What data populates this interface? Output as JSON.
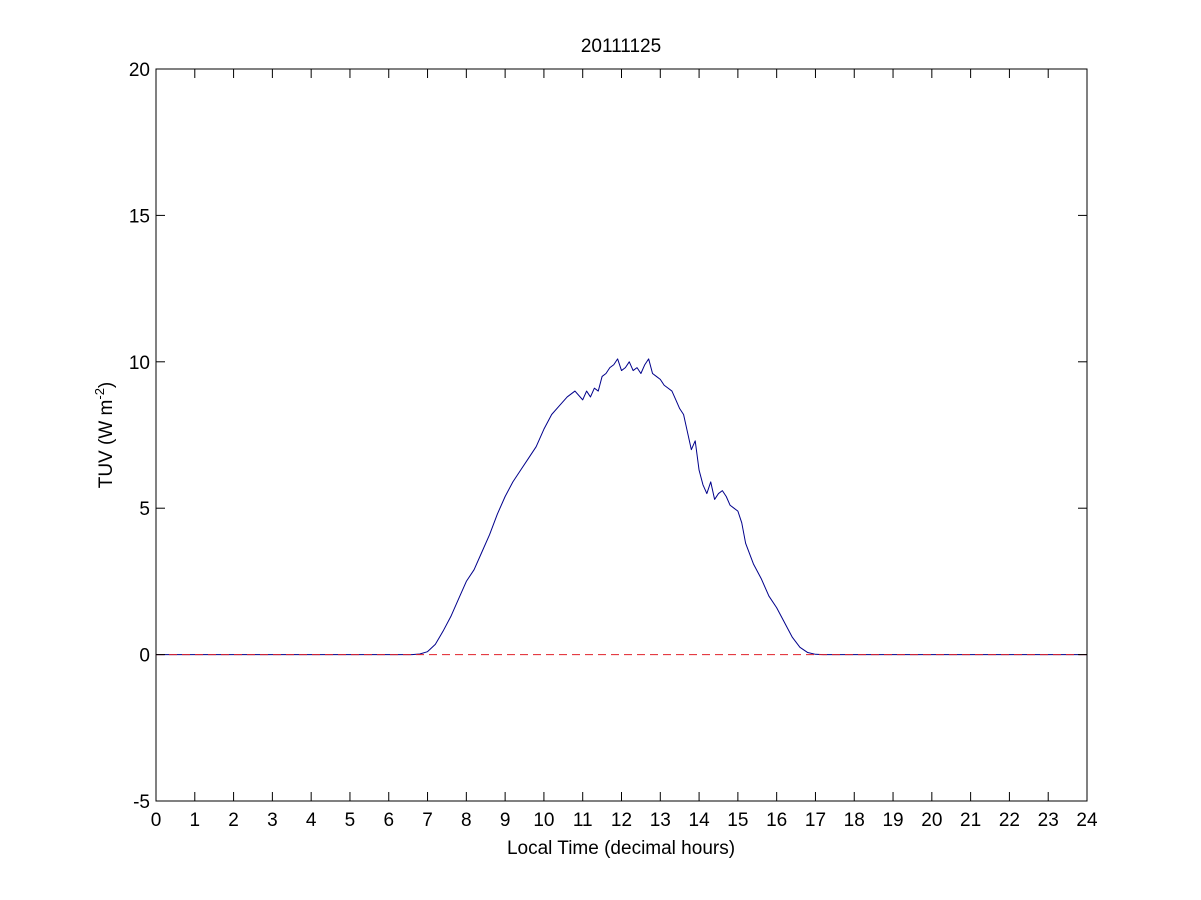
{
  "chart_data": {
    "type": "line",
    "title": "20111125",
    "xlabel": "Local Time (decimal hours)",
    "ylabel": {
      "text": "TUV (W m",
      "superscript": "-2",
      "suffix": ")"
    },
    "xlim": [
      0,
      24
    ],
    "ylim": [
      -5,
      20
    ],
    "xticks": [
      0,
      1,
      2,
      3,
      4,
      5,
      6,
      7,
      8,
      9,
      10,
      11,
      12,
      13,
      14,
      15,
      16,
      17,
      18,
      19,
      20,
      21,
      22,
      23,
      24
    ],
    "yticks": [
      -5,
      0,
      5,
      10,
      15,
      20
    ],
    "grid": false,
    "legend": "none",
    "series": [
      {
        "color": "#00008b",
        "style": "solid",
        "x": [
          0,
          6.6,
          6.8,
          7.0,
          7.2,
          7.4,
          7.6,
          7.8,
          8.0,
          8.2,
          8.4,
          8.6,
          8.8,
          9.0,
          9.2,
          9.4,
          9.6,
          9.8,
          10.0,
          10.2,
          10.4,
          10.6,
          10.8,
          11.0,
          11.1,
          11.2,
          11.3,
          11.4,
          11.5,
          11.6,
          11.7,
          11.8,
          11.9,
          12.0,
          12.1,
          12.2,
          12.3,
          12.4,
          12.5,
          12.6,
          12.7,
          12.8,
          12.9,
          13.0,
          13.1,
          13.2,
          13.3,
          13.4,
          13.5,
          13.6,
          13.7,
          13.8,
          13.9,
          14.0,
          14.1,
          14.2,
          14.3,
          14.4,
          14.5,
          14.6,
          14.7,
          14.8,
          14.9,
          15.0,
          15.1,
          15.2,
          15.4,
          15.6,
          15.8,
          16.0,
          16.2,
          16.4,
          16.6,
          16.8,
          17.0,
          17.2,
          17.4,
          24
        ],
        "values": [
          0,
          0,
          0.02,
          0.1,
          0.35,
          0.8,
          1.3,
          1.9,
          2.5,
          2.9,
          3.5,
          4.1,
          4.8,
          5.4,
          5.9,
          6.3,
          6.7,
          7.1,
          7.7,
          8.2,
          8.5,
          8.8,
          9.0,
          8.7,
          9.0,
          8.8,
          9.1,
          9.0,
          9.5,
          9.6,
          9.8,
          9.9,
          10.1,
          9.7,
          9.8,
          10.0,
          9.7,
          9.8,
          9.6,
          9.9,
          10.1,
          9.6,
          9.5,
          9.4,
          9.2,
          9.1,
          9.0,
          8.7,
          8.4,
          8.2,
          7.6,
          7.0,
          7.3,
          6.3,
          5.8,
          5.5,
          5.9,
          5.3,
          5.5,
          5.6,
          5.4,
          5.1,
          5.0,
          4.9,
          4.5,
          3.8,
          3.1,
          2.6,
          2.0,
          1.6,
          1.1,
          0.6,
          0.25,
          0.07,
          0.01,
          0,
          0,
          0
        ]
      },
      {
        "color": "#e0202a",
        "style": "dashed",
        "x": [
          0,
          24
        ],
        "values": [
          0,
          0
        ]
      }
    ]
  }
}
